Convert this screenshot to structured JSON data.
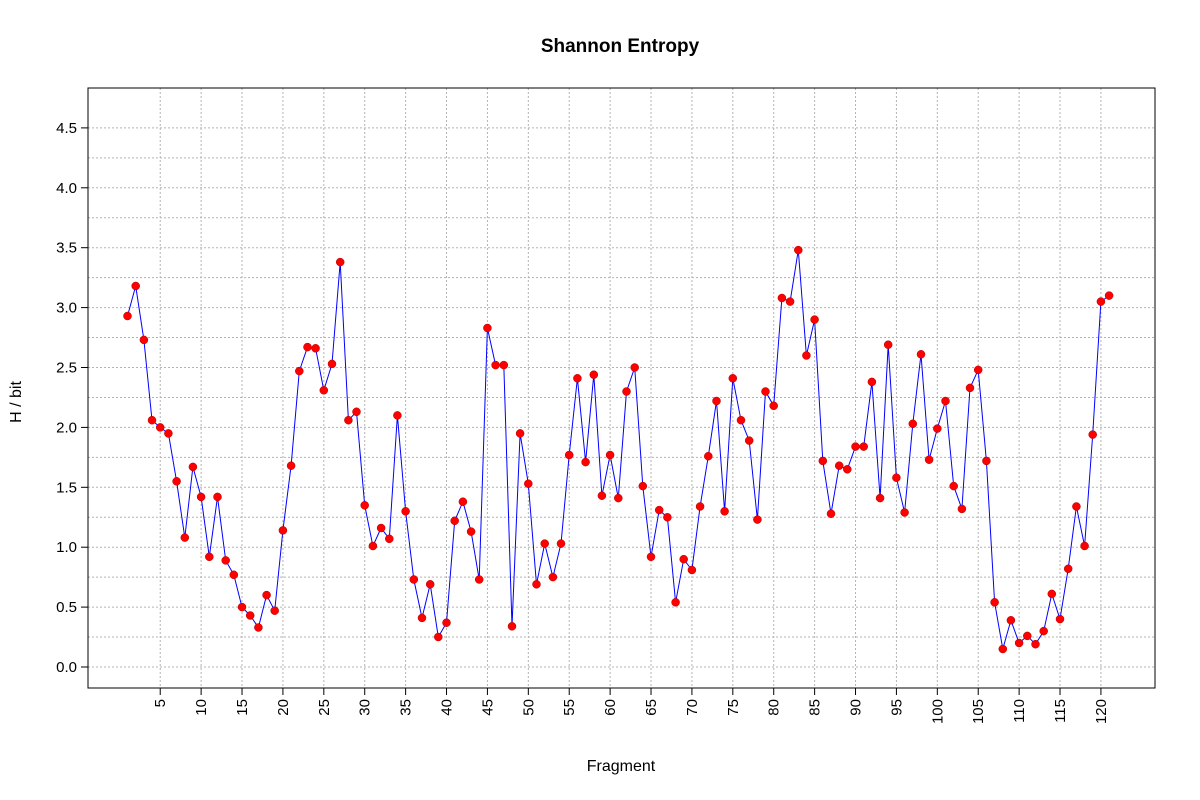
{
  "chart_data": {
    "type": "line",
    "title": "Shannon Entropy",
    "xlabel": "Fragment",
    "ylabel": "H / bit",
    "xlim": [
      1,
      121
    ],
    "ylim": [
      0,
      4.5
    ],
    "x_ticks": [
      5,
      10,
      15,
      20,
      25,
      30,
      35,
      40,
      45,
      50,
      55,
      60,
      65,
      70,
      75,
      80,
      85,
      90,
      95,
      100,
      105,
      110,
      115,
      120
    ],
    "y_ticks": [
      "0.0",
      "0.5",
      "1.0",
      "1.5",
      "2.0",
      "2.5",
      "3.0",
      "3.5",
      "4.0",
      "4.5"
    ],
    "grid": true,
    "line_color": "#0000ff",
    "point_color": "#ff0000",
    "series": [
      {
        "x": [
          1,
          2,
          3,
          4,
          5,
          6,
          7,
          8,
          9,
          10,
          11,
          12,
          13,
          14,
          15,
          16,
          17,
          18,
          19,
          20,
          21,
          22,
          23,
          24,
          25,
          26,
          27,
          28,
          29,
          30,
          31,
          32,
          33,
          34,
          35,
          36,
          37,
          38,
          39,
          40,
          41,
          42,
          43,
          44,
          45,
          46,
          47,
          48,
          49,
          50,
          51,
          52,
          53,
          54,
          55,
          56,
          57,
          58,
          59,
          60,
          61,
          62,
          63,
          64,
          65,
          66,
          67,
          68,
          69,
          70,
          71,
          72,
          73,
          74,
          75,
          76,
          77,
          78,
          79,
          80,
          81,
          82,
          83,
          84,
          85,
          86,
          87,
          88,
          89,
          90,
          91,
          92,
          93,
          94,
          95,
          96,
          97,
          98,
          99,
          100,
          101,
          102,
          103,
          104,
          105,
          106,
          107,
          108,
          109,
          110,
          111,
          112,
          113,
          114,
          115,
          116,
          117,
          118,
          119,
          120,
          121
        ],
        "values": [
          2.93,
          3.18,
          2.73,
          2.06,
          2.0,
          1.95,
          1.55,
          1.08,
          1.67,
          1.42,
          0.92,
          1.42,
          0.89,
          0.77,
          0.5,
          0.43,
          0.33,
          0.6,
          0.47,
          1.14,
          1.68,
          2.47,
          2.67,
          2.66,
          2.31,
          2.53,
          3.38,
          2.06,
          2.13,
          1.35,
          1.01,
          1.16,
          1.07,
          2.1,
          1.3,
          0.73,
          0.41,
          0.69,
          0.25,
          0.37,
          1.22,
          1.38,
          1.13,
          0.73,
          2.83,
          2.52,
          2.52,
          0.34,
          1.95,
          1.53,
          0.69,
          1.03,
          0.75,
          1.03,
          1.77,
          2.41,
          1.71,
          2.44,
          1.43,
          1.77,
          1.41,
          2.3,
          2.5,
          1.51,
          0.92,
          1.31,
          1.25,
          0.54,
          0.9,
          0.81,
          1.34,
          1.76,
          2.22,
          1.3,
          2.41,
          2.06,
          1.89,
          1.23,
          2.3,
          2.18,
          3.08,
          3.05,
          3.48,
          2.6,
          2.9,
          1.72,
          1.28,
          1.68,
          1.65,
          1.84,
          1.84,
          2.38,
          1.41,
          2.69,
          1.58,
          1.29,
          2.03,
          2.61,
          1.73,
          1.99,
          2.22,
          1.51,
          1.32,
          2.33,
          2.48,
          1.72,
          0.54,
          0.15,
          0.39,
          0.2,
          0.26,
          0.19,
          0.3,
          0.61,
          0.4,
          0.82,
          1.34,
          1.01,
          1.94,
          3.05,
          3.1
        ]
      }
    ]
  }
}
